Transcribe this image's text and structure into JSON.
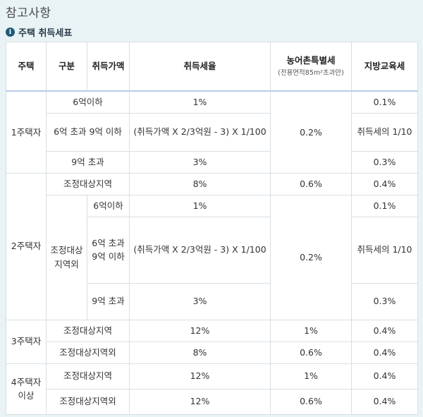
{
  "page": {
    "title": "참고사항",
    "section_title": "주택 취득세표"
  },
  "headers": {
    "house": "주택",
    "category": "구분",
    "price": "취득가액",
    "rate": "취득세율",
    "rural_tax": "농어촌특별세",
    "rural_tax_note": "(전용면적85m²초과만)",
    "edu_tax": "지방교육세"
  },
  "rows": {
    "one": {
      "label": "1주택자",
      "r1": {
        "cat": "6억이하",
        "rate": "1%",
        "edu": "0.1%"
      },
      "r2": {
        "cat": "6억 초과 9억 이하",
        "rate": "(취득가액 X 2/3억원 - 3) X 1/100",
        "edu": "취득세의 1/10"
      },
      "r3": {
        "cat": "9억 초과",
        "rate": "3%",
        "edu": "0.3%"
      },
      "rural": "0.2%"
    },
    "two": {
      "label": "2주택자",
      "adj": {
        "cat": "조정대상지역",
        "rate": "8%",
        "rural": "0.6%",
        "edu": "0.4%"
      },
      "nonadj": "조정대상지역외",
      "r1": {
        "cat": "6억이하",
        "rate": "1%",
        "edu": "0.1%"
      },
      "r2": {
        "cat": "6억 초과 9억 이하",
        "rate": "(취득가액 X 2/3억원 - 3) X 1/100",
        "edu": "취득세의 1/10"
      },
      "r3": {
        "cat": "9억 초과",
        "rate": "3%",
        "edu": "0.3%"
      },
      "rural": "0.2%"
    },
    "three": {
      "label": "3주택자",
      "adj": {
        "cat": "조정대상지역",
        "rate": "12%",
        "rural": "1%",
        "edu": "0.4%"
      },
      "nonadj": {
        "cat": "조정대상지역외",
        "rate": "8%",
        "rural": "0.6%",
        "edu": "0.4%"
      }
    },
    "four": {
      "label": "4주택자 이상",
      "adj": {
        "cat": "조정대상지역",
        "rate": "12%",
        "rural": "1%",
        "edu": "0.4%"
      },
      "nonadj": {
        "cat": "조정대상지역외",
        "rate": "12%",
        "rural": "0.6%",
        "edu": "0.4%"
      }
    }
  }
}
